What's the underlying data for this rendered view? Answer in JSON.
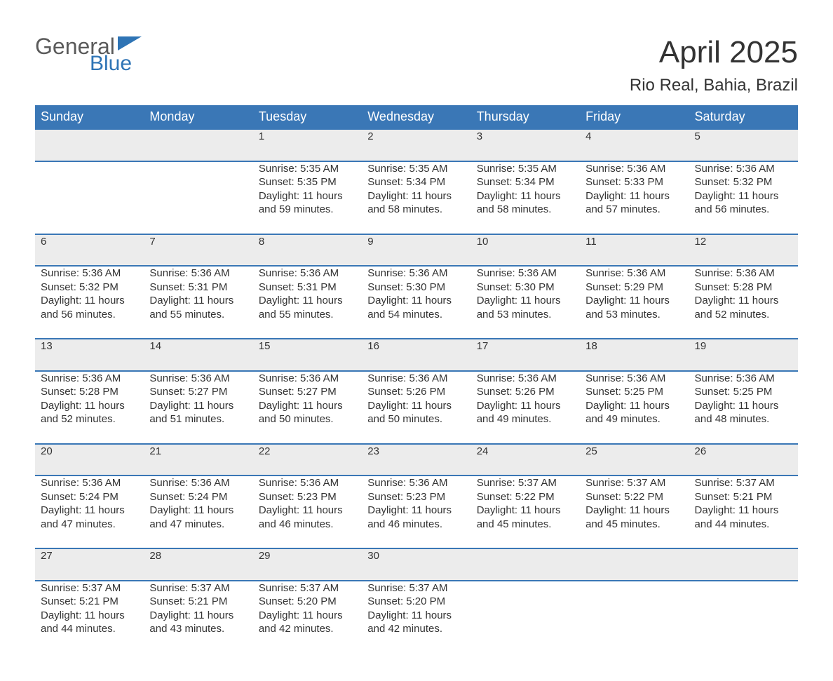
{
  "logo": {
    "general": "General",
    "blue": "Blue"
  },
  "title": "April 2025",
  "location": "Rio Real, Bahia, Brazil",
  "colors": {
    "header_bg": "#3a77b6",
    "header_text": "#ffffff",
    "daynum_bg": "#ececec",
    "text": "#333333",
    "logo_gray": "#5a5a5a",
    "logo_blue": "#2e74b5",
    "rule": "#3a77b6"
  },
  "fonts": {
    "title_pt": 44,
    "location_pt": 24,
    "header_pt": 18,
    "daynum_pt": 18,
    "body_pt": 15
  },
  "day_headers": [
    "Sunday",
    "Monday",
    "Tuesday",
    "Wednesday",
    "Thursday",
    "Friday",
    "Saturday"
  ],
  "weeks": [
    [
      null,
      null,
      {
        "n": "1",
        "sr": "Sunrise: 5:35 AM",
        "ss": "Sunset: 5:35 PM",
        "d1": "Daylight: 11 hours",
        "d2": "and 59 minutes."
      },
      {
        "n": "2",
        "sr": "Sunrise: 5:35 AM",
        "ss": "Sunset: 5:34 PM",
        "d1": "Daylight: 11 hours",
        "d2": "and 58 minutes."
      },
      {
        "n": "3",
        "sr": "Sunrise: 5:35 AM",
        "ss": "Sunset: 5:34 PM",
        "d1": "Daylight: 11 hours",
        "d2": "and 58 minutes."
      },
      {
        "n": "4",
        "sr": "Sunrise: 5:36 AM",
        "ss": "Sunset: 5:33 PM",
        "d1": "Daylight: 11 hours",
        "d2": "and 57 minutes."
      },
      {
        "n": "5",
        "sr": "Sunrise: 5:36 AM",
        "ss": "Sunset: 5:32 PM",
        "d1": "Daylight: 11 hours",
        "d2": "and 56 minutes."
      }
    ],
    [
      {
        "n": "6",
        "sr": "Sunrise: 5:36 AM",
        "ss": "Sunset: 5:32 PM",
        "d1": "Daylight: 11 hours",
        "d2": "and 56 minutes."
      },
      {
        "n": "7",
        "sr": "Sunrise: 5:36 AM",
        "ss": "Sunset: 5:31 PM",
        "d1": "Daylight: 11 hours",
        "d2": "and 55 minutes."
      },
      {
        "n": "8",
        "sr": "Sunrise: 5:36 AM",
        "ss": "Sunset: 5:31 PM",
        "d1": "Daylight: 11 hours",
        "d2": "and 55 minutes."
      },
      {
        "n": "9",
        "sr": "Sunrise: 5:36 AM",
        "ss": "Sunset: 5:30 PM",
        "d1": "Daylight: 11 hours",
        "d2": "and 54 minutes."
      },
      {
        "n": "10",
        "sr": "Sunrise: 5:36 AM",
        "ss": "Sunset: 5:30 PM",
        "d1": "Daylight: 11 hours",
        "d2": "and 53 minutes."
      },
      {
        "n": "11",
        "sr": "Sunrise: 5:36 AM",
        "ss": "Sunset: 5:29 PM",
        "d1": "Daylight: 11 hours",
        "d2": "and 53 minutes."
      },
      {
        "n": "12",
        "sr": "Sunrise: 5:36 AM",
        "ss": "Sunset: 5:28 PM",
        "d1": "Daylight: 11 hours",
        "d2": "and 52 minutes."
      }
    ],
    [
      {
        "n": "13",
        "sr": "Sunrise: 5:36 AM",
        "ss": "Sunset: 5:28 PM",
        "d1": "Daylight: 11 hours",
        "d2": "and 52 minutes."
      },
      {
        "n": "14",
        "sr": "Sunrise: 5:36 AM",
        "ss": "Sunset: 5:27 PM",
        "d1": "Daylight: 11 hours",
        "d2": "and 51 minutes."
      },
      {
        "n": "15",
        "sr": "Sunrise: 5:36 AM",
        "ss": "Sunset: 5:27 PM",
        "d1": "Daylight: 11 hours",
        "d2": "and 50 minutes."
      },
      {
        "n": "16",
        "sr": "Sunrise: 5:36 AM",
        "ss": "Sunset: 5:26 PM",
        "d1": "Daylight: 11 hours",
        "d2": "and 50 minutes."
      },
      {
        "n": "17",
        "sr": "Sunrise: 5:36 AM",
        "ss": "Sunset: 5:26 PM",
        "d1": "Daylight: 11 hours",
        "d2": "and 49 minutes."
      },
      {
        "n": "18",
        "sr": "Sunrise: 5:36 AM",
        "ss": "Sunset: 5:25 PM",
        "d1": "Daylight: 11 hours",
        "d2": "and 49 minutes."
      },
      {
        "n": "19",
        "sr": "Sunrise: 5:36 AM",
        "ss": "Sunset: 5:25 PM",
        "d1": "Daylight: 11 hours",
        "d2": "and 48 minutes."
      }
    ],
    [
      {
        "n": "20",
        "sr": "Sunrise: 5:36 AM",
        "ss": "Sunset: 5:24 PM",
        "d1": "Daylight: 11 hours",
        "d2": "and 47 minutes."
      },
      {
        "n": "21",
        "sr": "Sunrise: 5:36 AM",
        "ss": "Sunset: 5:24 PM",
        "d1": "Daylight: 11 hours",
        "d2": "and 47 minutes."
      },
      {
        "n": "22",
        "sr": "Sunrise: 5:36 AM",
        "ss": "Sunset: 5:23 PM",
        "d1": "Daylight: 11 hours",
        "d2": "and 46 minutes."
      },
      {
        "n": "23",
        "sr": "Sunrise: 5:36 AM",
        "ss": "Sunset: 5:23 PM",
        "d1": "Daylight: 11 hours",
        "d2": "and 46 minutes."
      },
      {
        "n": "24",
        "sr": "Sunrise: 5:37 AM",
        "ss": "Sunset: 5:22 PM",
        "d1": "Daylight: 11 hours",
        "d2": "and 45 minutes."
      },
      {
        "n": "25",
        "sr": "Sunrise: 5:37 AM",
        "ss": "Sunset: 5:22 PM",
        "d1": "Daylight: 11 hours",
        "d2": "and 45 minutes."
      },
      {
        "n": "26",
        "sr": "Sunrise: 5:37 AM",
        "ss": "Sunset: 5:21 PM",
        "d1": "Daylight: 11 hours",
        "d2": "and 44 minutes."
      }
    ],
    [
      {
        "n": "27",
        "sr": "Sunrise: 5:37 AM",
        "ss": "Sunset: 5:21 PM",
        "d1": "Daylight: 11 hours",
        "d2": "and 44 minutes."
      },
      {
        "n": "28",
        "sr": "Sunrise: 5:37 AM",
        "ss": "Sunset: 5:21 PM",
        "d1": "Daylight: 11 hours",
        "d2": "and 43 minutes."
      },
      {
        "n": "29",
        "sr": "Sunrise: 5:37 AM",
        "ss": "Sunset: 5:20 PM",
        "d1": "Daylight: 11 hours",
        "d2": "and 42 minutes."
      },
      {
        "n": "30",
        "sr": "Sunrise: 5:37 AM",
        "ss": "Sunset: 5:20 PM",
        "d1": "Daylight: 11 hours",
        "d2": "and 42 minutes."
      },
      null,
      null,
      null
    ]
  ]
}
